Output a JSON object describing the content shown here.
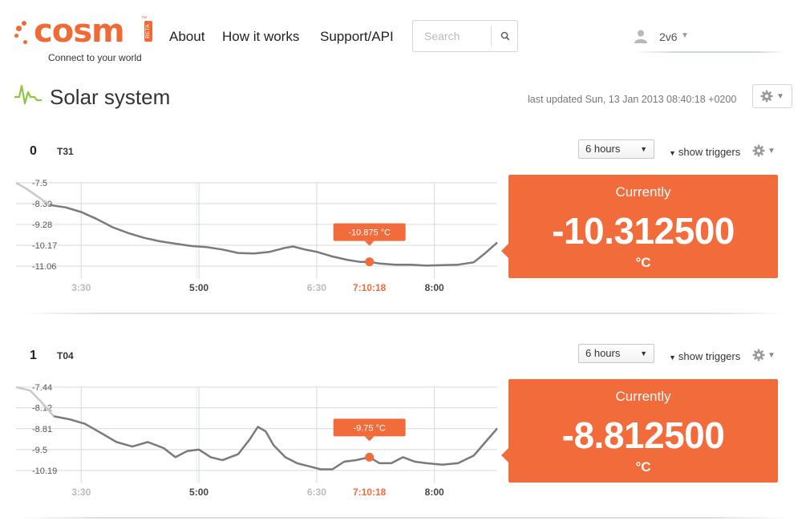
{
  "header": {
    "logo_text": "cosm",
    "logo_badge": "BETA",
    "tagline": "Connect to your world",
    "nav": {
      "about": "About",
      "how_it_works": "How it works",
      "support": "Support/API"
    },
    "search": {
      "placeholder": "Search",
      "icon": "search-icon"
    },
    "user": {
      "name": "2v6",
      "icon": "user-avatar-icon"
    }
  },
  "feed": {
    "title": "Solar system",
    "last_updated": "last updated Sun, 13 Jan 2013 08:40:18 +0200",
    "icon": "pulse-icon",
    "accent_color": "#8dc63f"
  },
  "colors": {
    "brand": "#f06a35",
    "current_panel": "#f26b3a",
    "line": "#7a7a7a"
  },
  "datastreams": [
    {
      "id": "0",
      "name": "T31",
      "range": "6 hours",
      "show_triggers": "show triggers",
      "current_label": "Currently",
      "current_value": "-10.312500",
      "unit": "°C",
      "tooltip": "-10.875 °C",
      "hover_time": "7:10:18",
      "chart_data": {
        "type": "line",
        "y_ticks": [
          "-7.5",
          "-8.39",
          "-9.28",
          "-10.17",
          "-11.06"
        ],
        "y_ticks_num": [
          -7.5,
          -8.39,
          -9.28,
          -10.17,
          -11.06
        ],
        "x_ticks": [
          "3:30",
          "5:00",
          "6:30",
          "7:10:18",
          "8:00"
        ],
        "x_ticks_h": [
          3.5,
          5.0,
          6.5,
          7.172,
          8.0
        ],
        "x_ticks_style": [
          "light",
          "bold",
          "light",
          "hover",
          "bold"
        ],
        "hover_h": 7.172,
        "hover_y": -10.875,
        "series": [
          {
            "x": [
              2.67,
              2.8,
              2.95,
              3.1,
              3.3,
              3.5,
              3.7,
              3.9,
              4.1,
              4.3,
              4.5,
              4.7,
              4.9,
              5.1,
              5.3,
              5.5,
              5.7,
              5.9,
              6.1,
              6.2,
              6.35,
              6.5,
              6.7,
              6.9,
              7.05,
              7.172,
              7.3,
              7.5,
              7.7,
              7.9,
              8.1,
              8.3,
              8.5,
              8.65,
              8.8
            ],
            "y": [
              -7.5,
              -7.75,
              -8.1,
              -8.45,
              -8.55,
              -8.75,
              -9.05,
              -9.4,
              -9.65,
              -9.85,
              -10.0,
              -10.1,
              -10.2,
              -10.25,
              -10.35,
              -10.5,
              -10.52,
              -10.45,
              -10.28,
              -10.22,
              -10.35,
              -10.45,
              -10.65,
              -10.8,
              -10.88,
              -10.875,
              -10.95,
              -11.0,
              -11.0,
              -11.04,
              -11.02,
              -11.0,
              -10.9,
              -10.5,
              -10.05
            ]
          }
        ]
      }
    },
    {
      "id": "1",
      "name": "T04",
      "range": "6 hours",
      "show_triggers": "show triggers",
      "current_label": "Currently",
      "current_value": "-8.812500",
      "unit": "°C",
      "tooltip": "-9.75 °C",
      "hover_time": "7:10:18",
      "chart_data": {
        "type": "line",
        "y_ticks": [
          "-7.44",
          "-8.12",
          "-8.81",
          "-9.5",
          "-10.19"
        ],
        "y_ticks_num": [
          -7.44,
          -8.12,
          -8.81,
          -9.5,
          -10.19
        ],
        "x_ticks": [
          "3:30",
          "5:00",
          "6:30",
          "7:10:18",
          "8:00"
        ],
        "x_ticks_h": [
          3.5,
          5.0,
          6.5,
          7.172,
          8.0
        ],
        "x_ticks_style": [
          "light",
          "bold",
          "light",
          "hover",
          "bold"
        ],
        "hover_h": 7.172,
        "hover_y": -9.75,
        "series": [
          {
            "x": [
              2.67,
              2.85,
              3.0,
              3.15,
              3.35,
              3.55,
              3.75,
              3.95,
              4.15,
              4.35,
              4.55,
              4.7,
              4.85,
              5.0,
              5.15,
              5.3,
              5.5,
              5.65,
              5.75,
              5.85,
              5.95,
              6.1,
              6.25,
              6.4,
              6.55,
              6.7,
              6.85,
              7.0,
              7.172,
              7.3,
              7.45,
              7.6,
              7.75,
              7.9,
              8.1,
              8.3,
              8.5,
              8.65,
              8.8
            ],
            "y": [
              -7.44,
              -7.55,
              -7.95,
              -8.4,
              -8.5,
              -8.65,
              -8.95,
              -9.25,
              -9.4,
              -9.25,
              -9.45,
              -9.75,
              -9.55,
              -9.5,
              -9.75,
              -9.85,
              -9.65,
              -9.15,
              -8.75,
              -8.9,
              -9.35,
              -9.75,
              -9.95,
              -10.05,
              -10.15,
              -10.15,
              -9.9,
              -9.85,
              -9.75,
              -9.95,
              -9.95,
              -9.75,
              -9.9,
              -9.95,
              -10.0,
              -9.95,
              -9.7,
              -9.25,
              -8.8
            ]
          }
        ]
      }
    }
  ]
}
